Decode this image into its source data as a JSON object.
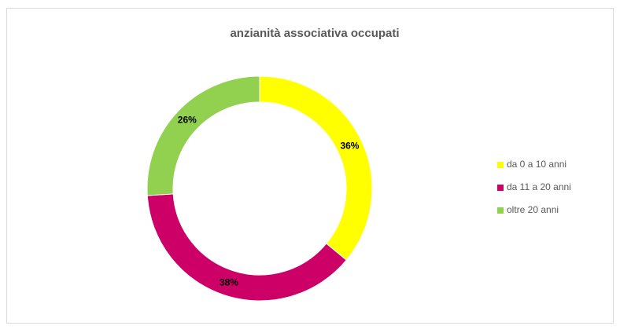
{
  "chart_data": {
    "type": "donut",
    "title": "anzianità associativa occupati",
    "categories": [
      "da 0 a 10 anni",
      "da 11 a 20 anni",
      "oltre 20 anni"
    ],
    "values": [
      36,
      38,
      26
    ],
    "value_labels": [
      "36%",
      "38%",
      "26%"
    ],
    "colors": [
      "#ffff00",
      "#cc0066",
      "#92d050"
    ],
    "legend": "right"
  }
}
